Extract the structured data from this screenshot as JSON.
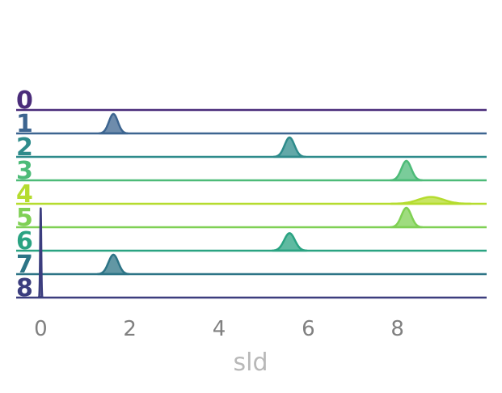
{
  "chart_data": {
    "type": "ridgeline",
    "title": "",
    "xlabel": "sld",
    "ylabel": "",
    "xlim": [
      -0.55,
      10.0
    ],
    "xticks": [
      0,
      2,
      4,
      6,
      8
    ],
    "grid": false,
    "legend": "none",
    "rows": [
      {
        "label": "0",
        "color": "#4a2c7a",
        "peak_x": null,
        "width": 0.0,
        "height": 0.0
      },
      {
        "label": "1",
        "color": "#3d6590",
        "peak_x": 1.63,
        "width": 0.1,
        "height": 1.0
      },
      {
        "label": "2",
        "color": "#2e8b8b",
        "peak_x": 5.58,
        "width": 0.11,
        "height": 1.0
      },
      {
        "label": "3",
        "color": "#4dbb78",
        "peak_x": 8.2,
        "width": 0.11,
        "height": 1.0
      },
      {
        "label": "4",
        "color": "#b5dc2f",
        "peak_x": 8.75,
        "width": 0.28,
        "height": 0.35
      },
      {
        "label": "5",
        "color": "#7fd054",
        "peak_x": 8.2,
        "width": 0.11,
        "height": 1.0
      },
      {
        "label": "6",
        "color": "#2aa382",
        "peak_x": 5.58,
        "width": 0.12,
        "height": 0.9
      },
      {
        "label": "7",
        "color": "#2d7486",
        "peak_x": 1.63,
        "width": 0.11,
        "height": 1.0
      },
      {
        "label": "8",
        "color": "#3b3d7e",
        "peak_x": 0.0,
        "width": 0.012,
        "height": 4.6
      }
    ]
  }
}
